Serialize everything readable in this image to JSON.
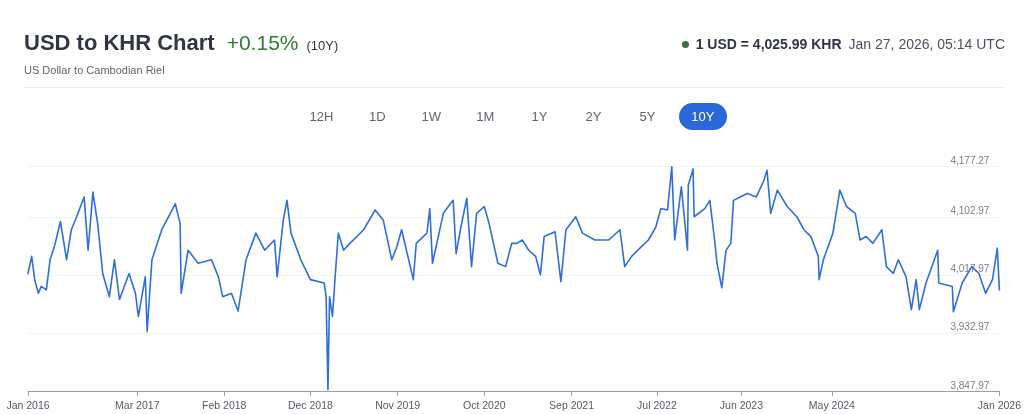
{
  "chart_data": {
    "type": "line",
    "title": "USD to KHR Chart",
    "subtitle": "US Dollar to Cambodian Riel",
    "annotations": [
      "+0.15%",
      "(10Y)",
      "1 USD = 4,025.99 KHR",
      "Jan 27, 2026, 05:14 UTC",
      "12H",
      "1D",
      "1W",
      "1M",
      "1Y",
      "2Y",
      "5Y",
      "10Y"
    ],
    "x": [
      "2016-01-27",
      "2016-02-10",
      "2016-02-21",
      "2016-03-06",
      "2016-03-17",
      "2016-04-05",
      "2016-04-19",
      "2016-05-07",
      "2016-05-28",
      "2016-06-20",
      "2016-07-08",
      "2016-07-28",
      "2016-08-25",
      "2016-09-09",
      "2016-09-27",
      "2016-10-15",
      "2016-11-03",
      "2016-11-28",
      "2016-12-17",
      "2017-01-05",
      "2017-02-10",
      "2017-03-06",
      "2017-03-17",
      "2017-04-12",
      "2017-04-19",
      "2017-05-07",
      "2017-06-13",
      "2017-08-03",
      "2017-08-21",
      "2017-08-25",
      "2017-09-20",
      "2017-10-28",
      "2017-12-17",
      "2018-01-12",
      "2018-01-28",
      "2018-03-02",
      "2018-03-27",
      "2018-04-26",
      "2018-06-02",
      "2018-07-05",
      "2018-08-11",
      "2018-08-21",
      "2018-09-13",
      "2018-09-27",
      "2018-10-12",
      "2018-11-18",
      "2018-12-24",
      "2019-02-14",
      "2019-02-21",
      "2019-02-28",
      "2019-03-06",
      "2019-03-17",
      "2019-03-27",
      "2019-04-08",
      "2019-04-28",
      "2019-05-21",
      "2019-06-17",
      "2019-07-12",
      "2019-08-25",
      "2019-09-24",
      "2019-10-26",
      "2019-11-14",
      "2019-12-02",
      "2020-01-15",
      "2020-01-26",
      "2020-03-06",
      "2020-03-17",
      "2020-03-27",
      "2020-05-07",
      "2020-06-02",
      "2020-06-13",
      "2020-06-24",
      "2020-07-12",
      "2020-08-03",
      "2020-08-21",
      "2020-09-09",
      "2020-10-08",
      "2020-10-26",
      "2020-11-28",
      "2020-12-27",
      "2021-01-19",
      "2021-02-07",
      "2021-02-28",
      "2021-03-24",
      "2021-04-19",
      "2021-05-07",
      "2021-05-21",
      "2021-07-01",
      "2021-07-23",
      "2021-08-11",
      "2021-09-17",
      "2021-10-12",
      "2021-11-28",
      "2022-01-19",
      "2022-03-02",
      "2022-03-20",
      "2022-04-15",
      "2022-05-21",
      "2022-06-17",
      "2022-07-15",
      "2022-08-03",
      "2022-08-28",
      "2022-09-13",
      "2022-09-24",
      "2022-10-19",
      "2022-11-11",
      "2022-11-14",
      "2022-12-02",
      "2022-12-06",
      "2023-01-15",
      "2023-02-03",
      "2023-02-21",
      "2023-03-02",
      "2023-03-20",
      "2023-04-05",
      "2023-04-23",
      "2023-05-03",
      "2023-05-28",
      "2023-06-24",
      "2023-07-28",
      "2023-08-25",
      "2023-09-06",
      "2023-09-20",
      "2023-10-15",
      "2023-11-21",
      "2023-12-27",
      "2024-01-23",
      "2024-02-18",
      "2024-03-17",
      "2024-03-20",
      "2024-04-05",
      "2024-05-11",
      "2024-06-06",
      "2024-07-01",
      "2024-08-03",
      "2024-08-21",
      "2024-09-13",
      "2024-10-08",
      "2024-11-11",
      "2024-11-28",
      "2024-12-24",
      "2025-01-12",
      "2025-02-10",
      "2025-03-02",
      "2025-03-20",
      "2025-04-01",
      "2025-04-26",
      "2025-06-09",
      "2025-06-13",
      "2025-08-03",
      "2025-08-07",
      "2025-09-09",
      "2025-10-15",
      "2025-11-11",
      "2025-12-06",
      "2026-01-01",
      "2026-01-19",
      "2026-01-27"
    ],
    "series": [
      {
        "color": "#2f6fdb",
        "values": [
          4020,
          4045,
          4011,
          3991,
          4001,
          3996,
          4040,
          4062,
          4096,
          4040,
          4084,
          4103,
          4132,
          4054,
          4139,
          4093,
          4020,
          3986,
          4040,
          3982,
          4020,
          3991,
          3957,
          4015,
          3935,
          4040,
          4084,
          4122,
          4093,
          3991,
          4054,
          4035,
          4040,
          4015,
          3986,
          3991,
          3965,
          4040,
          4079,
          4054,
          4069,
          4015,
          4098,
          4127,
          4079,
          4040,
          4011,
          4006,
          3986,
          3850,
          3986,
          3957,
          4015,
          4079,
          4054,
          4064,
          4074,
          4084,
          4113,
          4098,
          4040,
          4059,
          4084,
          4011,
          4064,
          4079,
          4115,
          4035,
          4108,
          4122,
          4127,
          4049,
          4088,
          4130,
          4030,
          4108,
          4118,
          4093,
          4035,
          4030,
          4064,
          4064,
          4069,
          4054,
          4045,
          4018,
          4074,
          4081,
          4008,
          4084,
          4103,
          4079,
          4069,
          4069,
          4084,
          4030,
          4045,
          4059,
          4069,
          4088,
          4115,
          4113,
          4176,
          4069,
          4147,
          4054,
          4149,
          4173,
          4103,
          4115,
          4127,
          4069,
          4035,
          3999,
          4054,
          4064,
          4127,
          4132,
          4137,
          4132,
          4156,
          4171,
          4108,
          4142,
          4118,
          4103,
          4084,
          4074,
          4045,
          4011,
          4040,
          4079,
          4142,
          4118,
          4108,
          4069,
          4074,
          4064,
          4084,
          4030,
          4020,
          4040,
          4015,
          3967,
          4011,
          3967,
          4006,
          4054,
          4006,
          4001,
          3964,
          4006,
          4030,
          4020,
          3991,
          4011,
          4057,
          3996
        ]
      }
    ],
    "xlim": [
      "2016-01-27",
      "2026-01-27"
    ],
    "xticks": [
      {
        "value": "2016-01-27",
        "label": "Jan 2016"
      },
      {
        "value": "2017-03-13",
        "label": "Mar 2017"
      },
      {
        "value": "2018-02-03",
        "label": "Feb 2018"
      },
      {
        "value": "2018-12-24",
        "label": "Dec 2018"
      },
      {
        "value": "2019-11-17",
        "label": "Nov 2019"
      },
      {
        "value": "2020-10-08",
        "label": "Oct 2020"
      },
      {
        "value": "2021-09-01",
        "label": "Sep 2021"
      },
      {
        "value": "2022-07-19",
        "label": "Jul 2022"
      },
      {
        "value": "2023-06-02",
        "label": "Jun 2023"
      },
      {
        "value": "2024-05-07",
        "label": "May 2024"
      },
      {
        "value": "2026-01-27",
        "label": "Jan 2026"
      }
    ],
    "ylim": [
      3847.97,
      4177.27
    ],
    "yticks": [
      {
        "value": 3847.97,
        "label": "3,847.97"
      },
      {
        "value": 3932.97,
        "label": "3,932.97"
      },
      {
        "value": 4017.97,
        "label": "4,017.97"
      },
      {
        "value": 4102.97,
        "label": "4,102.97"
      },
      {
        "value": 4177.27,
        "label": "4,177.27"
      }
    ],
    "grid": "y",
    "marker": "none",
    "line_style": "solid"
  }
}
